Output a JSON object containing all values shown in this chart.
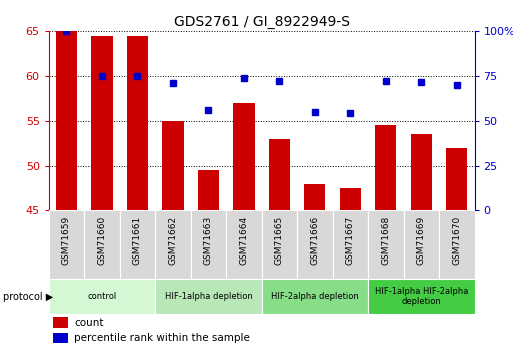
{
  "title": "GDS2761 / GI_8922949-S",
  "samples": [
    "GSM71659",
    "GSM71660",
    "GSM71661",
    "GSM71662",
    "GSM71663",
    "GSM71664",
    "GSM71665",
    "GSM71666",
    "GSM71667",
    "GSM71668",
    "GSM71669",
    "GSM71670"
  ],
  "counts": [
    65,
    64.5,
    64.5,
    55,
    49.5,
    57,
    53,
    48,
    47.5,
    54.5,
    53.5,
    52
  ],
  "percentile": [
    100,
    75,
    75,
    71,
    56,
    74,
    72,
    55,
    54.5,
    72,
    71.5,
    70
  ],
  "ylim_left": [
    45,
    65
  ],
  "ylim_right": [
    0,
    100
  ],
  "yticks_left": [
    45,
    50,
    55,
    60,
    65
  ],
  "yticks_right": [
    0,
    25,
    50,
    75,
    100
  ],
  "bar_color": "#cc0000",
  "dot_color": "#0000cc",
  "group_labels": [
    "control",
    "HIF-1alpha depletion",
    "HIF-2alpha depletion",
    "HIF-1alpha HIF-2alpha\ndepletion"
  ],
  "group_starts": [
    0,
    3,
    6,
    9
  ],
  "group_ends": [
    3,
    6,
    9,
    12
  ],
  "group_colors": [
    "#d4f7d4",
    "#b8e8b8",
    "#88dd88",
    "#44cc44"
  ],
  "sample_box_color": "#d8d8d8",
  "left_tick_color": "#cc0000",
  "right_tick_color": "#0000cc",
  "grid_color": "#000000",
  "title_fontsize": 10
}
